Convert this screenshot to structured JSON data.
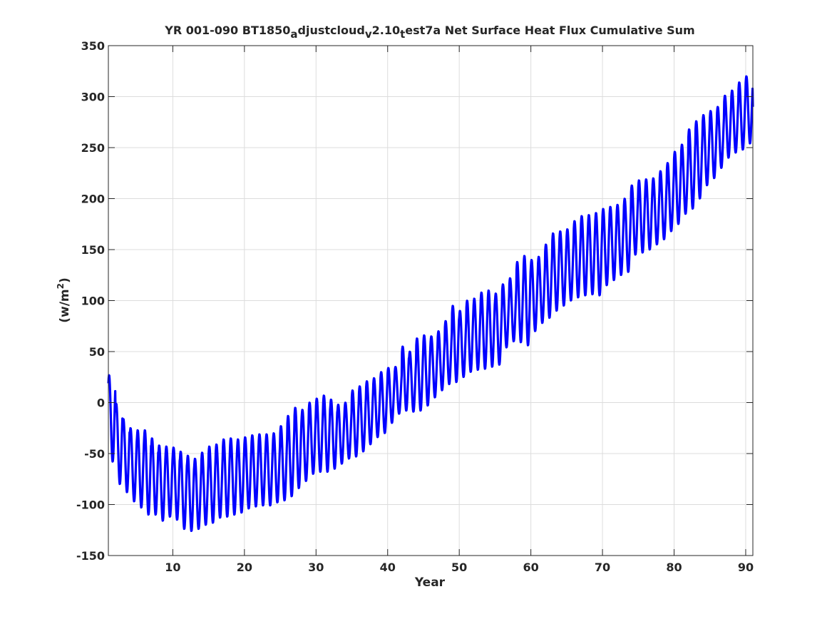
{
  "chart_data": {
    "type": "line",
    "title_parts": [
      {
        "text": "YR 001-090 BT1850",
        "sub": false
      },
      {
        "text": "a",
        "sub": true
      },
      {
        "text": "djustcloud",
        "sub": false
      },
      {
        "text": "v",
        "sub": true
      },
      {
        "text": "2.10",
        "sub": false
      },
      {
        "text": "t",
        "sub": true
      },
      {
        "text": "est7a Net Surface Heat Flux  Cumulative Sum",
        "sub": false
      }
    ],
    "xlabel": "Year",
    "ylabel_parts": [
      {
        "text": "(w/m",
        "sup": false
      },
      {
        "text": "2",
        "sup": true
      },
      {
        "text": ")",
        "sup": false
      }
    ],
    "xlim": [
      1,
      91
    ],
    "ylim": [
      -150,
      350
    ],
    "xticks": [
      10,
      20,
      30,
      40,
      50,
      60,
      70,
      80,
      90
    ],
    "yticks": [
      -150,
      -100,
      -50,
      0,
      50,
      100,
      150,
      200,
      250,
      300,
      350
    ],
    "xtick_labels": [
      "10",
      "20",
      "30",
      "40",
      "50",
      "60",
      "70",
      "80",
      "90"
    ],
    "ytick_labels": [
      "-150",
      "-100",
      "-50",
      "0",
      "50",
      "100",
      "150",
      "200",
      "250",
      "300",
      "350"
    ],
    "grid": true,
    "line_color": "#0000ff",
    "series": [
      {
        "description": "monthly cumulative sum with annual cycle; per-year peak (max) and trough (min) values",
        "years": [
          1,
          2,
          3,
          4,
          5,
          6,
          7,
          8,
          9,
          10,
          11,
          12,
          13,
          14,
          15,
          16,
          17,
          18,
          19,
          20,
          21,
          22,
          23,
          24,
          25,
          26,
          27,
          28,
          29,
          30,
          31,
          32,
          33,
          34,
          35,
          36,
          37,
          38,
          39,
          40,
          41,
          42,
          43,
          44,
          45,
          46,
          47,
          48,
          49,
          50,
          51,
          52,
          53,
          54,
          55,
          56,
          57,
          58,
          59,
          60,
          61,
          62,
          63,
          64,
          65,
          66,
          67,
          68,
          69,
          70,
          71,
          72,
          73,
          74,
          75,
          76,
          77,
          78,
          79,
          80,
          81,
          82,
          83,
          84,
          85,
          86,
          87,
          88,
          89,
          90
        ],
        "peaks": [
          27,
          -1,
          -16,
          -25,
          -27,
          -27,
          -35,
          -42,
          -43,
          -44,
          -48,
          -52,
          -55,
          -49,
          -43,
          -41,
          -36,
          -35,
          -36,
          -34,
          -32,
          -31,
          -31,
          -30,
          -23,
          -13,
          -5,
          -7,
          0,
          4,
          7,
          3,
          -2,
          0,
          12,
          16,
          21,
          24,
          30,
          34,
          35,
          55,
          50,
          63,
          66,
          65,
          70,
          80,
          95,
          90,
          100,
          102,
          108,
          110,
          107,
          116,
          122,
          138,
          144,
          140,
          143,
          155,
          166,
          168,
          170,
          178,
          183,
          184,
          186,
          190,
          192,
          194,
          200,
          213,
          218,
          219,
          220,
          227,
          235,
          246,
          253,
          268,
          276,
          282,
          286,
          290,
          301,
          306,
          314,
          320
        ],
        "troughs": [
          -58,
          -80,
          -88,
          -97,
          -103,
          -110,
          -110,
          -116,
          -112,
          -115,
          -124,
          -126,
          -124,
          -120,
          -118,
          -113,
          -112,
          -110,
          -108,
          -104,
          -102,
          -101,
          -101,
          -98,
          -96,
          -92,
          -84,
          -77,
          -70,
          -68,
          -68,
          -65,
          -60,
          -55,
          -53,
          -48,
          -41,
          -34,
          -30,
          -20,
          -11,
          -8,
          -9,
          -8,
          -3,
          5,
          12,
          18,
          20,
          25,
          30,
          32,
          33,
          35,
          37,
          54,
          60,
          59,
          56,
          70,
          78,
          83,
          90,
          95,
          100,
          103,
          105,
          106,
          105,
          115,
          120,
          125,
          128,
          145,
          147,
          150,
          155,
          160,
          168,
          175,
          185,
          190,
          200,
          213,
          220,
          230,
          240,
          245,
          248,
          254
        ],
        "end_value": 290
      }
    ]
  }
}
